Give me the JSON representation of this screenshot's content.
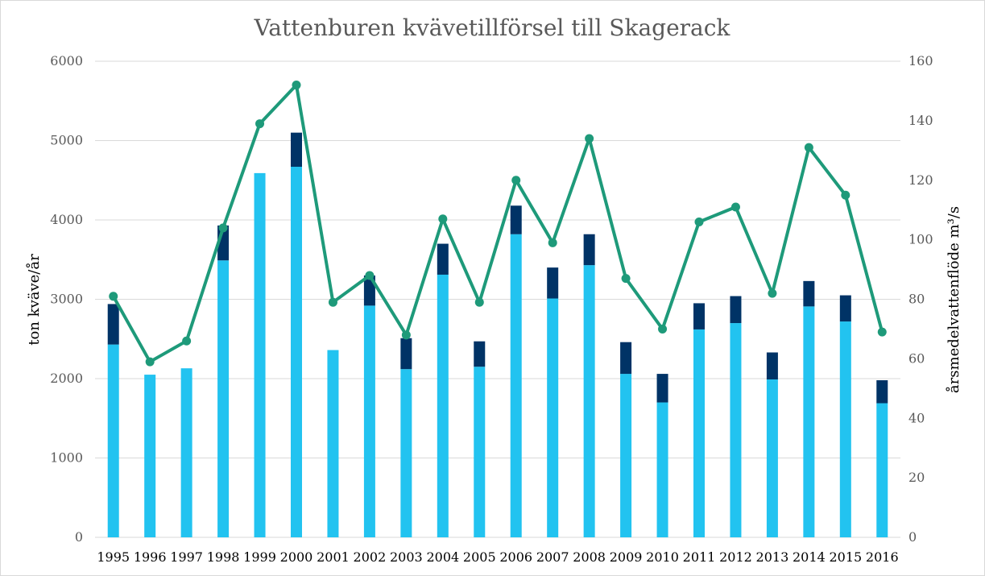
{
  "chart_data": {
    "type": "bar",
    "title": "Vattenburen kvävetillförsel till Skagerack",
    "ylabel": "ton kväve/år",
    "y2label": "årsmedelvattenflöde m³/s",
    "ylim": [
      0,
      6000
    ],
    "y2lim": [
      0,
      160
    ],
    "yticks": [
      "0",
      "1000",
      "2000",
      "3000",
      "4000",
      "5000",
      "6000"
    ],
    "y2ticks": [
      "0",
      "20",
      "40",
      "60",
      "80",
      "100",
      "120",
      "140",
      "160"
    ],
    "grid": true,
    "legend": "none",
    "stacked": true,
    "categories": [
      "1995",
      "1996",
      "1997",
      "1998",
      "1999",
      "2000",
      "2001",
      "2002",
      "2003",
      "2004",
      "2005",
      "2006",
      "2007",
      "2008",
      "2009",
      "2010",
      "2011",
      "2012",
      "2013",
      "2014",
      "2015",
      "2016"
    ],
    "series": [
      {
        "type": "bar",
        "axis": "left",
        "color": "#22c3f0",
        "values": [
          2430,
          2050,
          2130,
          3490,
          4590,
          4670,
          2360,
          2920,
          2120,
          3310,
          2150,
          3820,
          3010,
          3430,
          2060,
          1700,
          2620,
          2700,
          1990,
          2910,
          2720,
          1690
        ]
      },
      {
        "type": "bar",
        "axis": "left",
        "color": "#003366",
        "values": [
          510,
          0,
          0,
          440,
          0,
          430,
          0,
          380,
          390,
          390,
          320,
          360,
          390,
          390,
          400,
          360,
          330,
          340,
          340,
          320,
          330,
          290
        ]
      },
      {
        "type": "line",
        "axis": "right",
        "color": "#1e9a7a",
        "values": [
          81,
          59,
          66,
          104,
          139,
          152,
          79,
          88,
          68,
          107,
          79,
          120,
          99,
          134,
          87,
          70,
          106,
          111,
          82,
          131,
          115,
          69
        ]
      }
    ]
  }
}
